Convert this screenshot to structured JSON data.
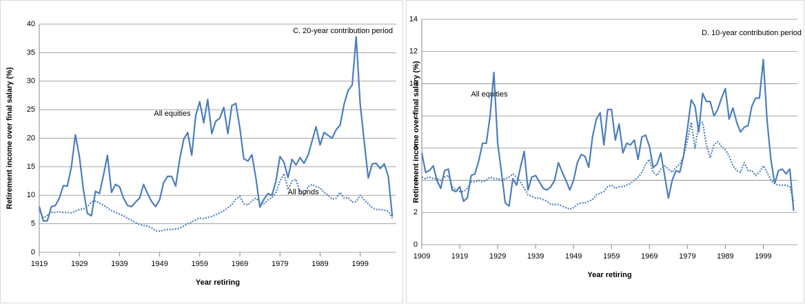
{
  "chart_data": [
    {
      "type": "line",
      "title": "C. 20-year contribution period",
      "ylabel": "Retirement income over final salary (%)",
      "xlabel": "Year retiring",
      "xlim": [
        1919,
        2008
      ],
      "xticks": [
        1919,
        1929,
        1939,
        1949,
        1959,
        1969,
        1979,
        1989,
        1999
      ],
      "ylim": [
        0,
        40
      ],
      "yticks": [
        0,
        5,
        10,
        15,
        20,
        25,
        30,
        35,
        40
      ],
      "grid": true,
      "x": [
        1919,
        1920,
        1921,
        1922,
        1923,
        1924,
        1925,
        1926,
        1927,
        1928,
        1929,
        1930,
        1931,
        1932,
        1933,
        1934,
        1935,
        1936,
        1937,
        1938,
        1939,
        1940,
        1941,
        1942,
        1943,
        1944,
        1945,
        1946,
        1947,
        1948,
        1949,
        1950,
        1951,
        1952,
        1953,
        1954,
        1955,
        1956,
        1957,
        1958,
        1959,
        1960,
        1961,
        1962,
        1963,
        1964,
        1965,
        1966,
        1967,
        1968,
        1969,
        1970,
        1971,
        1972,
        1973,
        1974,
        1975,
        1976,
        1977,
        1978,
        1979,
        1980,
        1981,
        1982,
        1983,
        1984,
        1985,
        1986,
        1987,
        1988,
        1989,
        1990,
        1991,
        1992,
        1993,
        1994,
        1995,
        1996,
        1997,
        1998,
        1999,
        2000,
        2001,
        2002,
        2003,
        2004,
        2005,
        2006,
        2007
      ],
      "series": [
        {
          "name": "All equities",
          "color": "#4a7ebb",
          "dash": "solid",
          "values": [
            8,
            5.5,
            5.5,
            8,
            8.2,
            9.5,
            11.7,
            11.6,
            15,
            20.6,
            16.8,
            11,
            6.8,
            6.4,
            10.7,
            10.3,
            13.5,
            17,
            10.5,
            11.9,
            11.5,
            9.5,
            8.2,
            8,
            8.8,
            9.5,
            11.9,
            10.3,
            8.9,
            8,
            9.2,
            12.2,
            13.3,
            13.3,
            11.6,
            16.3,
            19.8,
            21,
            17,
            24,
            26.4,
            22.7,
            26.8,
            20.8,
            23,
            23.5,
            25.4,
            20.8,
            25.7,
            26.1,
            21.8,
            16.4,
            16,
            17.1,
            13,
            7.9,
            9.3,
            10.3,
            10,
            12.5,
            16.8,
            15.8,
            13.1,
            16.3,
            15.3,
            16.6,
            15.6,
            17,
            19.5,
            22,
            18.8,
            21,
            20.5,
            20,
            21.5,
            22.3,
            26,
            28.4,
            29.3,
            37.8,
            26,
            19.5,
            13,
            15.5,
            15.6,
            14.7,
            15.5,
            13.3,
            6.3
          ]
        },
        {
          "name": "All bonds",
          "color": "#4a7ebb",
          "dash": "dotted",
          "values": [
            7.5,
            6,
            6.5,
            7,
            7,
            7.1,
            7,
            7,
            6.9,
            7.2,
            7.5,
            7.6,
            8,
            8.8,
            9,
            8.6,
            8.3,
            7.8,
            7.3,
            7,
            6.7,
            6.4,
            6,
            5.6,
            5.2,
            4.9,
            4.7,
            4.6,
            4.3,
            3.8,
            3.7,
            3.9,
            4,
            4,
            4.1,
            4.2,
            4.6,
            5,
            5.3,
            5.7,
            6,
            5.9,
            6.1,
            6.3,
            6.6,
            6.9,
            7.3,
            7.8,
            8.4,
            9.3,
            9.8,
            8.5,
            8.3,
            9,
            9.5,
            8.8,
            8.5,
            9.2,
            9.6,
            10.5,
            12.5,
            13.8,
            11,
            12.5,
            12.8,
            10.5,
            10,
            11.5,
            11.9,
            11.5,
            11.3,
            10.5,
            10,
            9.3,
            9.5,
            10.5,
            9.5,
            9.6,
            8.8,
            8.9,
            10,
            9.2,
            8.5,
            7.8,
            7.5,
            7.5,
            7.4,
            7.2,
            6
          ]
        }
      ]
    },
    {
      "type": "line",
      "title": "D. 10-year contribution period",
      "ylabel": "Retirement income over final salary (%)",
      "xlabel": "Year retiring",
      "xlim": [
        1909,
        2008
      ],
      "xticks": [
        1909,
        1919,
        1929,
        1939,
        1949,
        1959,
        1969,
        1979,
        1989,
        1999
      ],
      "ylim": [
        0,
        14
      ],
      "yticks": [
        0,
        2,
        4,
        6,
        8,
        10,
        12,
        14
      ],
      "grid": true,
      "x": [
        1909,
        1910,
        1911,
        1912,
        1913,
        1914,
        1915,
        1916,
        1917,
        1918,
        1919,
        1920,
        1921,
        1922,
        1923,
        1924,
        1925,
        1926,
        1927,
        1928,
        1929,
        1930,
        1931,
        1932,
        1933,
        1934,
        1935,
        1936,
        1937,
        1938,
        1939,
        1940,
        1941,
        1942,
        1943,
        1944,
        1945,
        1946,
        1947,
        1948,
        1949,
        1950,
        1951,
        1952,
        1953,
        1954,
        1955,
        1956,
        1957,
        1958,
        1959,
        1960,
        1961,
        1962,
        1963,
        1964,
        1965,
        1966,
        1967,
        1968,
        1969,
        1970,
        1971,
        1972,
        1973,
        1974,
        1975,
        1976,
        1977,
        1978,
        1979,
        1980,
        1981,
        1982,
        1983,
        1984,
        1985,
        1986,
        1987,
        1988,
        1989,
        1990,
        1991,
        1992,
        1993,
        1994,
        1995,
        1996,
        1997,
        1998,
        1999,
        2000,
        2001,
        2002,
        2003,
        2004,
        2005,
        2006,
        2007
      ],
      "series": [
        {
          "name": "All equities",
          "color": "#4a7ebb",
          "dash": "solid",
          "values": [
            5.7,
            4.5,
            4.6,
            4.9,
            4,
            3.5,
            4.6,
            4.7,
            3.4,
            3.3,
            3.6,
            2.7,
            2.9,
            4.3,
            4.4,
            5.2,
            6.3,
            6.3,
            8,
            10.7,
            6.3,
            4.5,
            2.6,
            2.4,
            4.1,
            3.7,
            4.8,
            5.8,
            3.4,
            4.2,
            4.3,
            3.9,
            3.5,
            3.4,
            3.6,
            4,
            5.1,
            4.5,
            4,
            3.4,
            4,
            5.1,
            5.6,
            5.5,
            4.8,
            6.7,
            7.8,
            8.2,
            6.2,
            8.4,
            8.4,
            6.5,
            7.5,
            5.7,
            6.3,
            6.2,
            6.5,
            5.3,
            6.7,
            6.8,
            6.1,
            4.8,
            5,
            5.7,
            4.3,
            2.9,
            4,
            4.6,
            4.5,
            5.5,
            7.2,
            9,
            8.6,
            7,
            9.4,
            8.9,
            8.9,
            8,
            8.4,
            9.1,
            9.7,
            7.8,
            8.5,
            7.6,
            7,
            7.3,
            7.4,
            8.6,
            9.1,
            9.1,
            11.5,
            7.7,
            5.3,
            3.8,
            4.6,
            4.7,
            4.4,
            4.7,
            2.1
          ]
        },
        {
          "color": "#4a7ebb",
          "dash": "dotted",
          "values": [
            4.2,
            4.1,
            4.2,
            4.1,
            4.1,
            4,
            4.2,
            4.3,
            3.6,
            3.4,
            3.3,
            3.3,
            3.5,
            3.9,
            3.9,
            4,
            3.9,
            4,
            4.2,
            4.1,
            4.1,
            4,
            4.1,
            4.2,
            4.4,
            4.2,
            3.9,
            3.5,
            3.1,
            3,
            2.9,
            2.9,
            2.8,
            2.7,
            2.5,
            2.5,
            2.5,
            2.4,
            2.3,
            2.2,
            2.3,
            2.5,
            2.6,
            2.6,
            2.7,
            2.8,
            3.1,
            3.2,
            3.3,
            3.6,
            3.7,
            3.5,
            3.6,
            3.6,
            3.7,
            3.8,
            4,
            4.2,
            4.5,
            5,
            5.3,
            4.5,
            4.3,
            4.7,
            4.9,
            4.7,
            4.5,
            4.8,
            5,
            5.5,
            6.5,
            7.6,
            6,
            7.5,
            7.6,
            6.2,
            5.4,
            6.2,
            6.4,
            6.1,
            5.9,
            5.5,
            4.9,
            4.6,
            4.5,
            5.1,
            4.6,
            4.6,
            4.3,
            4.5,
            4.9,
            4.5,
            4,
            3.8,
            3.7,
            3.7,
            3.7,
            3.6,
            2.7
          ]
        }
      ]
    }
  ]
}
